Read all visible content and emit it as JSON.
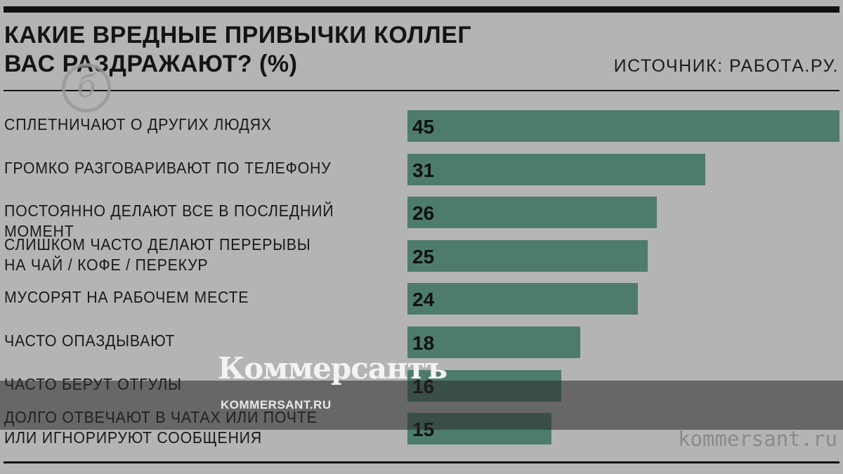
{
  "header": {
    "title": "КАКИЕ ВРЕДНЫЕ ПРИВЫЧКИ КОЛЛЕГ\nВАС РАЗДРАЖАЮТ? (%)",
    "source": "ИСТОЧНИК: РАБОТА.РУ."
  },
  "watermark": {
    "logo_letter": "б",
    "brand": "Коммерсантъ",
    "brand_url": "KOMMERSANT.RU",
    "corner_url": "kommersant.ru"
  },
  "colors": {
    "background": "#b4b4b4",
    "bar": "#4e7c6b",
    "text": "#111111"
  },
  "chart_data": {
    "type": "bar",
    "orientation": "horizontal",
    "title": "КАКИЕ ВРЕДНЫЕ ПРИВЫЧКИ КОЛЛЕГ ВАС РАЗДРАЖАЮТ? (%)",
    "categories": [
      "СПЛЕТНИЧАЮТ О ДРУГИХ ЛЮДЯХ",
      "ГРОМКО РАЗГОВАРИВАЮТ ПО ТЕЛЕФОНУ",
      "ПОСТОЯННО ДЕЛАЮТ ВСЕ В ПОСЛЕДНИЙ МОМЕНТ",
      "СЛИШКОМ ЧАСТО ДЕЛАЮТ ПЕРЕРЫВЫ\nНА ЧАЙ / КОФЕ / ПЕРЕКУР",
      "МУСОРЯТ НА РАБОЧЕМ МЕСТЕ",
      "ЧАСТО ОПАЗДЫВАЮТ",
      "ЧАСТО БЕРУТ ОТГУЛЫ",
      "ДОЛГО ОТВЕЧАЮТ В ЧАТАХ ИЛИ ПОЧТЕ\nИЛИ ИГНОРИРУЮТ СООБЩЕНИЯ"
    ],
    "values": [
      45,
      31,
      26,
      25,
      24,
      18,
      16,
      15
    ],
    "xlim": [
      0,
      45
    ],
    "grid": false,
    "legend": "none"
  }
}
